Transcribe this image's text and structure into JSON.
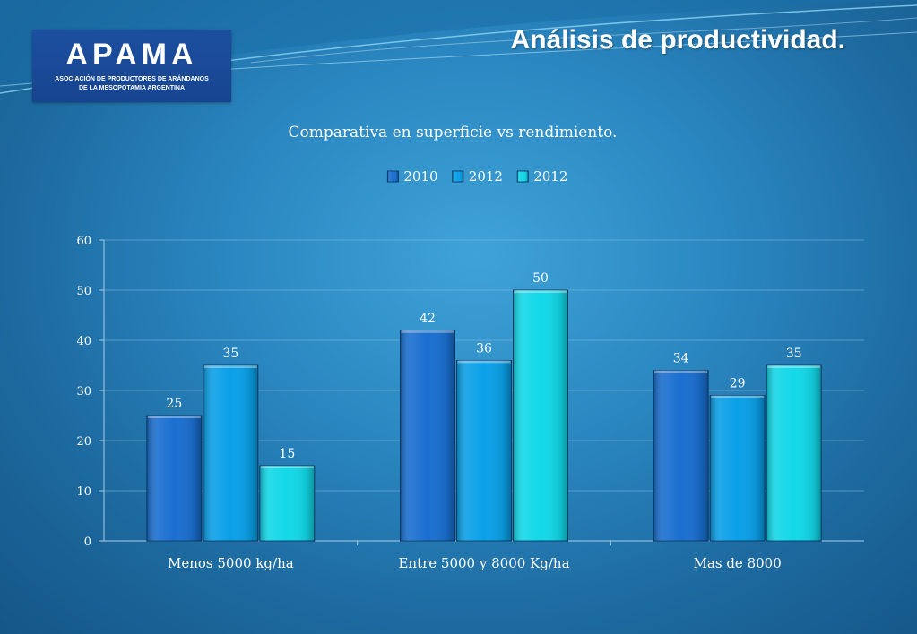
{
  "page_title": "Análisis de productividad.",
  "logo": {
    "word": "APAMA",
    "line1": "ASOCIACIÓN DE PRODUCTORES DE ARÁNDANOS",
    "line2": "DE LA MESOPOTAMIA ARGENTINA",
    "color": "#1c4fa0"
  },
  "chart_data": {
    "type": "bar",
    "title": "Comparativa en superficie vs rendimiento.",
    "categories": [
      "Menos 5000 kg/ha",
      "Entre 5000 y 8000 Kg/ha",
      "Mas de 8000"
    ],
    "series": [
      {
        "name": "2010",
        "values": [
          25,
          42,
          34
        ],
        "color": "#1a6fd0"
      },
      {
        "name": "2012",
        "values": [
          35,
          36,
          29
        ],
        "color": "#0aa0e8"
      },
      {
        "name": "2012",
        "values": [
          15,
          50,
          35
        ],
        "color": "#12d8e8"
      }
    ],
    "ylim": [
      0,
      60
    ],
    "yticks": [
      0,
      10,
      20,
      30,
      40,
      50,
      60
    ],
    "grid": true,
    "legend": "top-center",
    "data_labels": true
  }
}
